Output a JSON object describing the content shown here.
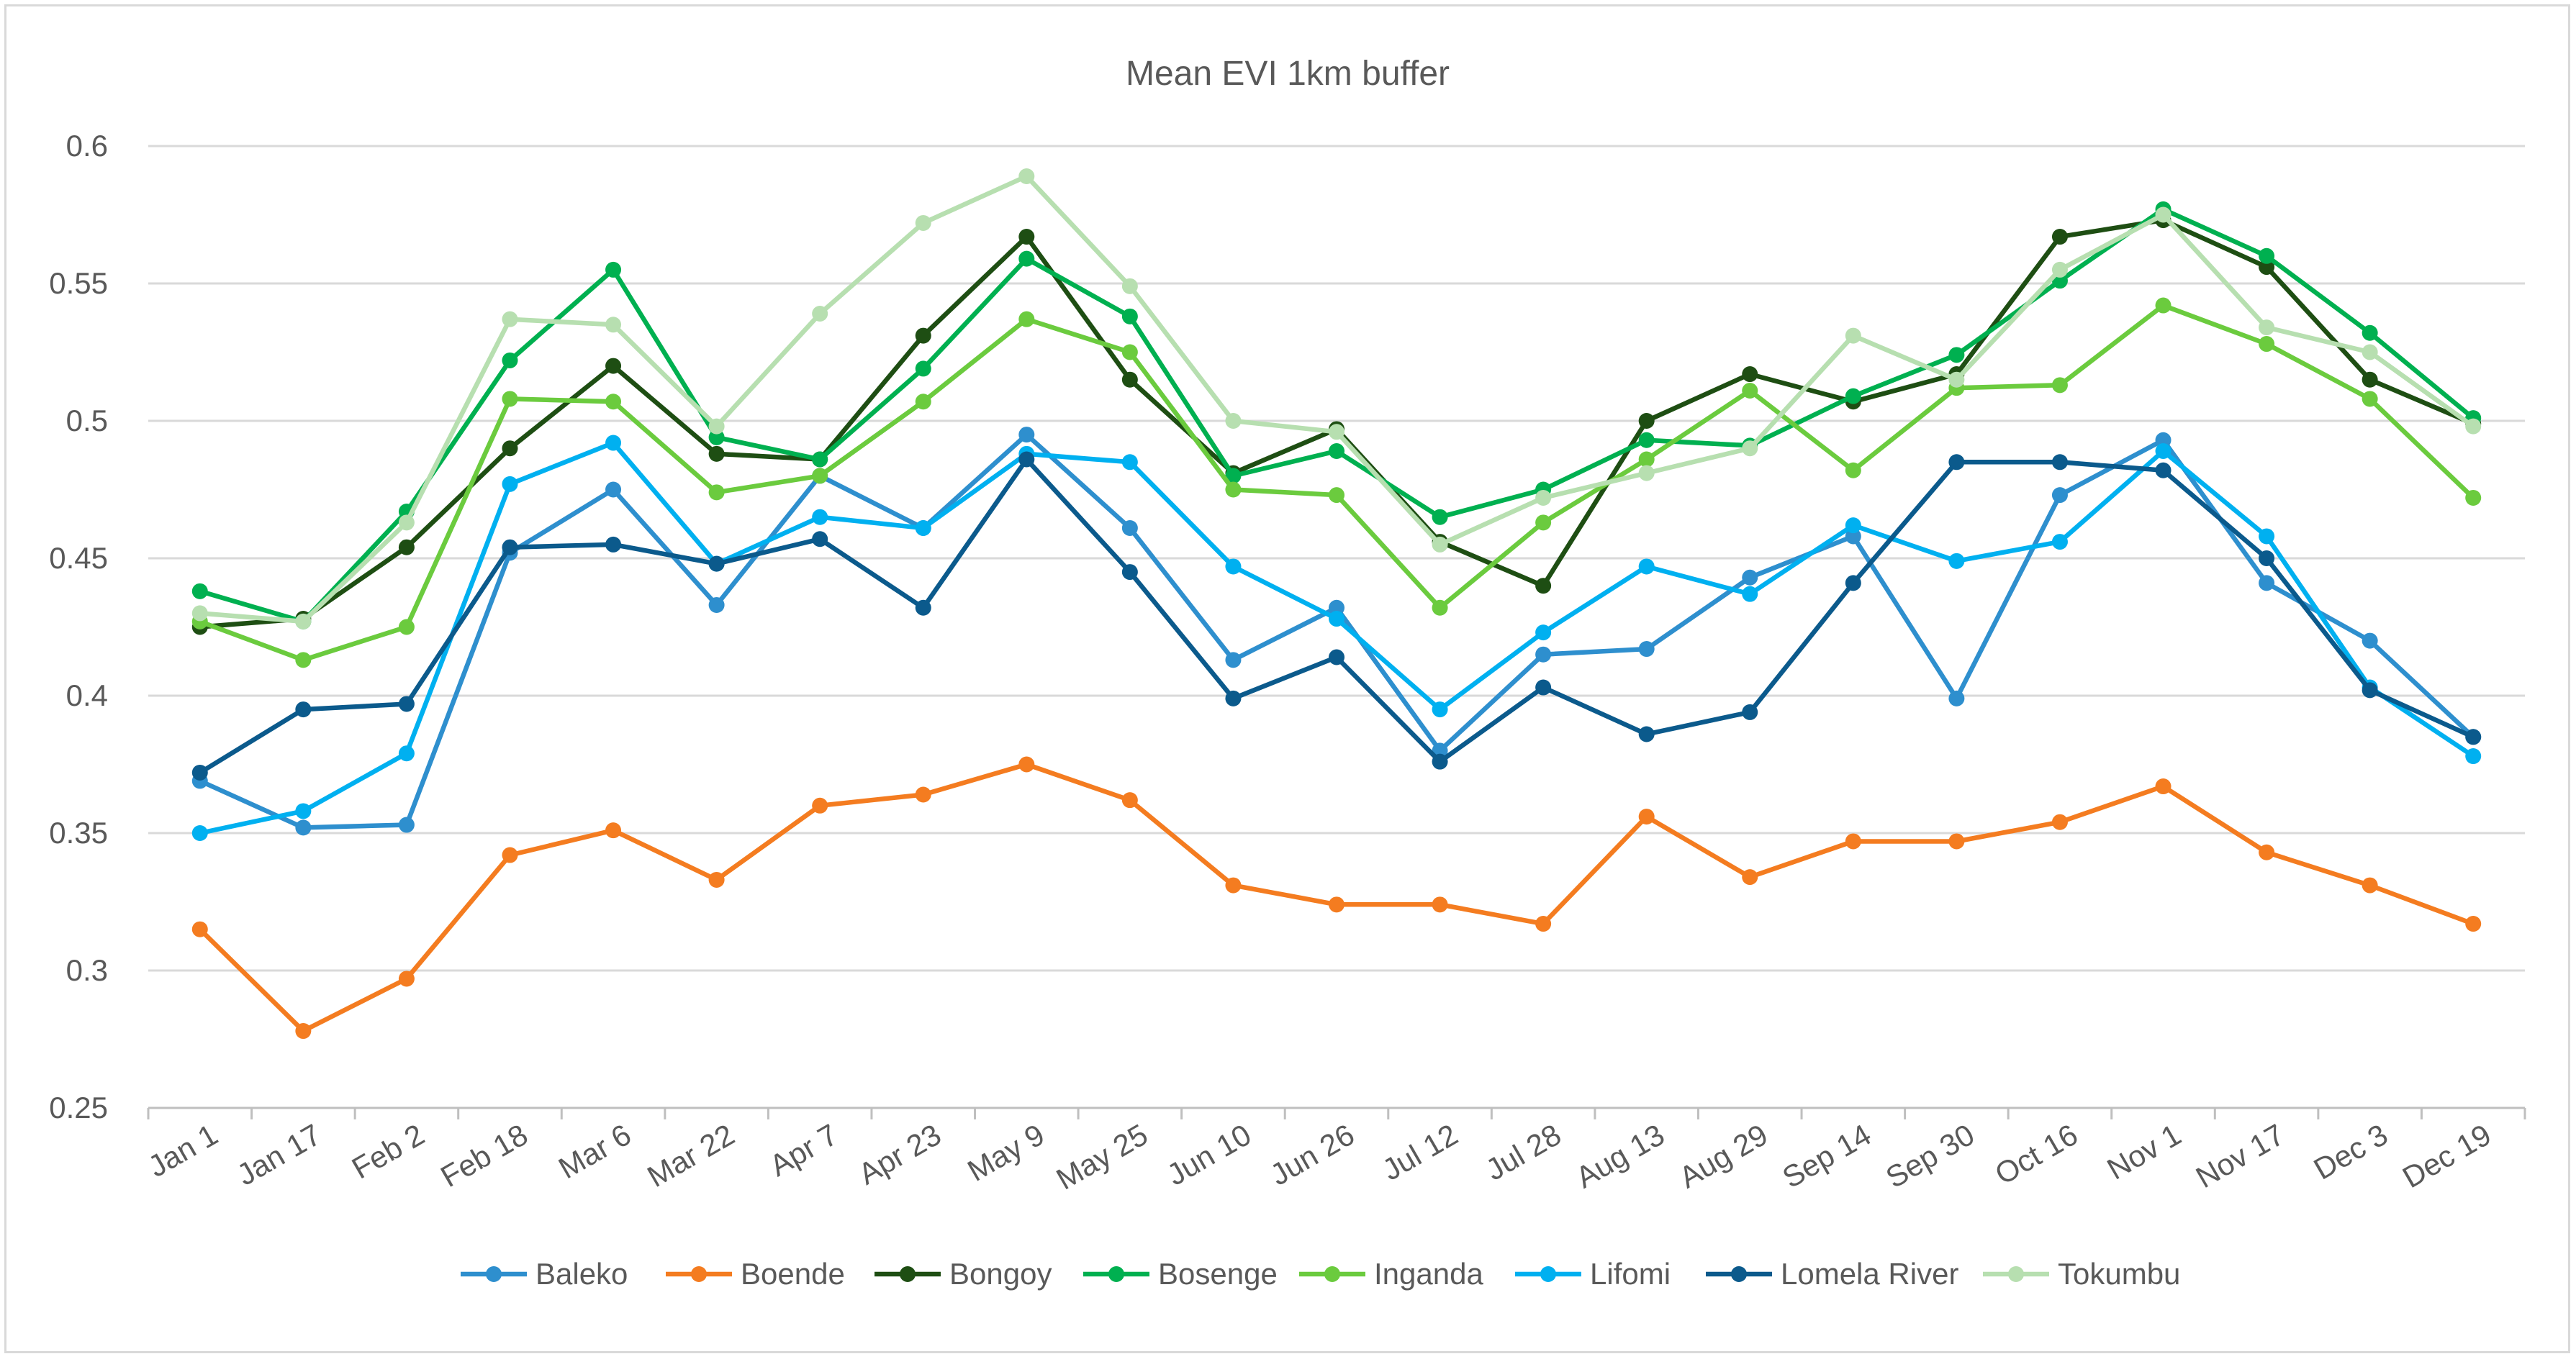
{
  "chart_data": {
    "type": "line",
    "title": "Mean EVI 1km buffer",
    "xlabel": "",
    "ylabel": "",
    "ylim": [
      0.25,
      0.6
    ],
    "y_ticks": [
      "0.25",
      "0.3",
      "0.35",
      "0.4",
      "0.45",
      "0.5",
      "0.55",
      "0.6"
    ],
    "categories": [
      "Jan 1",
      "Jan 17",
      "Feb 2",
      "Feb 18",
      "Mar 6",
      "Mar 22",
      "Apr 7",
      "Apr 23",
      "May 9",
      "May 25",
      "Jun 10",
      "Jun 26",
      "Jul 12",
      "Jul 28",
      "Aug 13",
      "Aug 29",
      "Sep 14",
      "Sep 30",
      "Oct 16",
      "Nov 1",
      "Nov 17",
      "Dec 3",
      "Dec 19"
    ],
    "grid": true,
    "legend_position": "bottom",
    "series": [
      {
        "name": "Baleko",
        "color": "#2e8fce",
        "values": [
          0.369,
          0.352,
          0.353,
          0.452,
          0.475,
          0.433,
          0.48,
          0.461,
          0.495,
          0.461,
          0.413,
          0.432,
          0.38,
          0.415,
          0.417,
          0.443,
          0.458,
          0.399,
          0.473,
          0.493,
          0.441,
          0.42,
          0.385
        ]
      },
      {
        "name": "Boende",
        "color": "#f47c20",
        "values": [
          0.315,
          0.278,
          0.297,
          0.342,
          0.351,
          0.333,
          0.36,
          0.364,
          0.375,
          0.362,
          0.331,
          0.324,
          0.324,
          0.317,
          0.356,
          0.334,
          0.347,
          0.347,
          0.354,
          0.367,
          0.343,
          0.331,
          0.317
        ]
      },
      {
        "name": "Bongoy",
        "color": "#1e4e13",
        "values": [
          0.425,
          0.428,
          0.454,
          0.49,
          0.52,
          0.488,
          0.486,
          0.531,
          0.567,
          0.515,
          0.481,
          0.497,
          0.456,
          0.44,
          0.5,
          0.517,
          0.507,
          0.517,
          0.567,
          0.573,
          0.556,
          0.515,
          0.499
        ]
      },
      {
        "name": "Bosenge",
        "color": "#00b050",
        "values": [
          0.438,
          0.427,
          0.467,
          0.522,
          0.555,
          0.494,
          0.486,
          0.519,
          0.559,
          0.538,
          0.48,
          0.489,
          0.465,
          0.475,
          0.493,
          0.491,
          0.509,
          0.524,
          0.551,
          0.577,
          0.56,
          0.532,
          0.501
        ]
      },
      {
        "name": "Inganda",
        "color": "#6bcb3e",
        "values": [
          0.427,
          0.413,
          0.425,
          0.508,
          0.507,
          0.474,
          0.48,
          0.507,
          0.537,
          0.525,
          0.475,
          0.473,
          0.432,
          0.463,
          0.486,
          0.511,
          0.482,
          0.512,
          0.513,
          0.542,
          0.528,
          0.508,
          0.472
        ]
      },
      {
        "name": "Lifomi",
        "color": "#00b0f0",
        "values": [
          0.35,
          0.358,
          0.379,
          0.477,
          0.492,
          0.448,
          0.465,
          0.461,
          0.488,
          0.485,
          0.447,
          0.428,
          0.395,
          0.423,
          0.447,
          0.437,
          0.462,
          0.449,
          0.456,
          0.489,
          0.458,
          0.403,
          0.378
        ]
      },
      {
        "name": "Lomela River",
        "color": "#0b5a8c",
        "values": [
          0.372,
          0.395,
          0.397,
          0.454,
          0.455,
          0.448,
          0.457,
          0.432,
          0.486,
          0.445,
          0.399,
          0.414,
          0.376,
          0.403,
          0.386,
          0.394,
          0.441,
          0.485,
          0.485,
          0.482,
          0.45,
          0.402,
          0.385
        ]
      },
      {
        "name": "Tokumbu",
        "color": "#b7dfb0",
        "values": [
          0.43,
          0.427,
          0.463,
          0.537,
          0.535,
          0.498,
          0.539,
          0.572,
          0.589,
          0.549,
          0.5,
          0.496,
          0.455,
          0.472,
          0.481,
          0.49,
          0.531,
          0.515,
          0.555,
          0.575,
          0.534,
          0.525,
          0.498
        ]
      }
    ]
  }
}
